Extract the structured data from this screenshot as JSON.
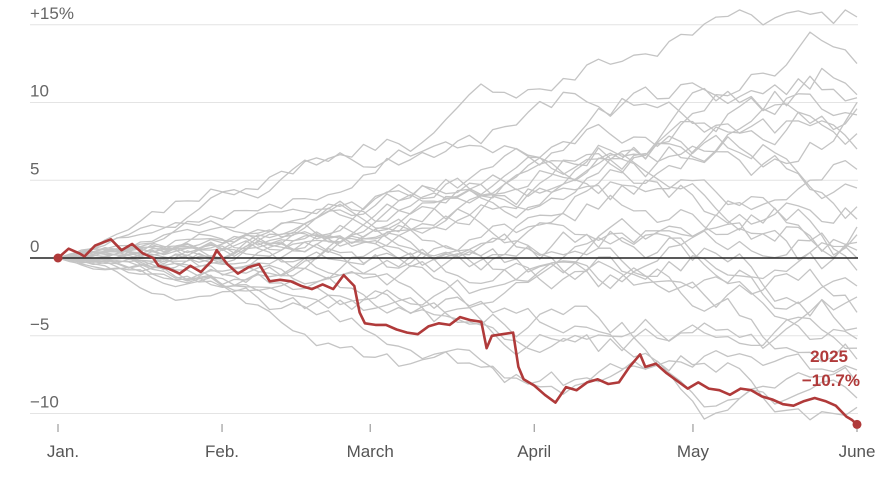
{
  "chart_data": {
    "type": "line",
    "title": "",
    "xlabel": "",
    "ylabel": "",
    "ylim": [
      -11,
      16
    ],
    "y_ticks": [
      {
        "value": 15,
        "label": "+15%"
      },
      {
        "value": 10,
        "label": "10"
      },
      {
        "value": 5,
        "label": "5"
      },
      {
        "value": 0,
        "label": "0"
      },
      {
        "value": -5,
        "label": "−5"
      },
      {
        "value": -10,
        "label": "−10"
      }
    ],
    "x_months": [
      "Jan.",
      "Feb.",
      "March",
      "April",
      "May",
      "June"
    ],
    "grid": true,
    "colors": {
      "highlight": "#b03a3a",
      "background_lines": "#c4c4c4",
      "grid": "#e4e4e4",
      "zero_line": "#222222"
    },
    "highlight": {
      "year_label": "2025",
      "final_label": "−10.7%",
      "final_value": -10.7,
      "points": [
        [
          0,
          0
        ],
        [
          2,
          0.6
        ],
        [
          4,
          0.3
        ],
        [
          5,
          0.1
        ],
        [
          7,
          0.8
        ],
        [
          10,
          1.2
        ],
        [
          12,
          0.5
        ],
        [
          14,
          0.9
        ],
        [
          16,
          0.3
        ],
        [
          18,
          0
        ],
        [
          19,
          -0.5
        ],
        [
          21,
          -0.7
        ],
        [
          23,
          -1.0
        ],
        [
          25,
          -0.5
        ],
        [
          27,
          -0.9
        ],
        [
          29,
          -0.2
        ],
        [
          30,
          0.5
        ],
        [
          32,
          -0.4
        ],
        [
          34,
          -1.0
        ],
        [
          36,
          -0.6
        ],
        [
          38,
          -0.4
        ],
        [
          40,
          -1.5
        ],
        [
          42,
          -1.4
        ],
        [
          44,
          -1.5
        ],
        [
          46,
          -1.8
        ],
        [
          48,
          -2.0
        ],
        [
          50,
          -1.7
        ],
        [
          52,
          -2.0
        ],
        [
          54,
          -1.1
        ],
        [
          56,
          -1.8
        ],
        [
          57,
          -3.5
        ],
        [
          58,
          -4.2
        ],
        [
          60,
          -4.3
        ],
        [
          62,
          -4.3
        ],
        [
          64,
          -4.6
        ],
        [
          66,
          -4.8
        ],
        [
          68,
          -4.9
        ],
        [
          70,
          -4.4
        ],
        [
          72,
          -4.2
        ],
        [
          74,
          -4.3
        ],
        [
          76,
          -3.8
        ],
        [
          78,
          -4.0
        ],
        [
          80,
          -4.1
        ],
        [
          81,
          -5.8
        ],
        [
          82,
          -5.0
        ],
        [
          84,
          -4.9
        ],
        [
          86,
          -4.8
        ],
        [
          87,
          -7.0
        ],
        [
          88,
          -7.8
        ],
        [
          90,
          -8.2
        ],
        [
          92,
          -8.8
        ],
        [
          94,
          -9.3
        ],
        [
          96,
          -8.3
        ],
        [
          98,
          -8.5
        ],
        [
          100,
          -8.0
        ],
        [
          102,
          -7.8
        ],
        [
          104,
          -8.1
        ],
        [
          106,
          -8.0
        ],
        [
          108,
          -7.0
        ],
        [
          110,
          -6.2
        ],
        [
          111,
          -7.0
        ],
        [
          113,
          -6.8
        ],
        [
          115,
          -7.4
        ],
        [
          117,
          -7.9
        ],
        [
          119,
          -8.4
        ],
        [
          121,
          -8.0
        ],
        [
          123,
          -8.4
        ],
        [
          125,
          -8.5
        ],
        [
          127,
          -8.8
        ],
        [
          129,
          -8.4
        ],
        [
          131,
          -8.5
        ],
        [
          133,
          -8.9
        ],
        [
          135,
          -9.1
        ],
        [
          137,
          -9.4
        ],
        [
          139,
          -9.5
        ],
        [
          141,
          -9.2
        ],
        [
          143,
          -9.0
        ],
        [
          145,
          -9.2
        ],
        [
          147,
          -9.5
        ],
        [
          149,
          -10.2
        ],
        [
          150,
          -10.4
        ],
        [
          151,
          -10.7
        ]
      ]
    },
    "background_series_finals": [
      15.5,
      12.5,
      10.5,
      10.3,
      10.0,
      9.6,
      9.2,
      8.0,
      7.0,
      5.7,
      4.5,
      3.3,
      2.5,
      2.0,
      1.5,
      1.0,
      0.5,
      0,
      -0.8,
      -1.8,
      -2.5,
      -3.5,
      -4.5,
      -5.2,
      -5.8,
      -6.5,
      -7.2,
      -8.0,
      -9.0,
      -9.6
    ]
  }
}
